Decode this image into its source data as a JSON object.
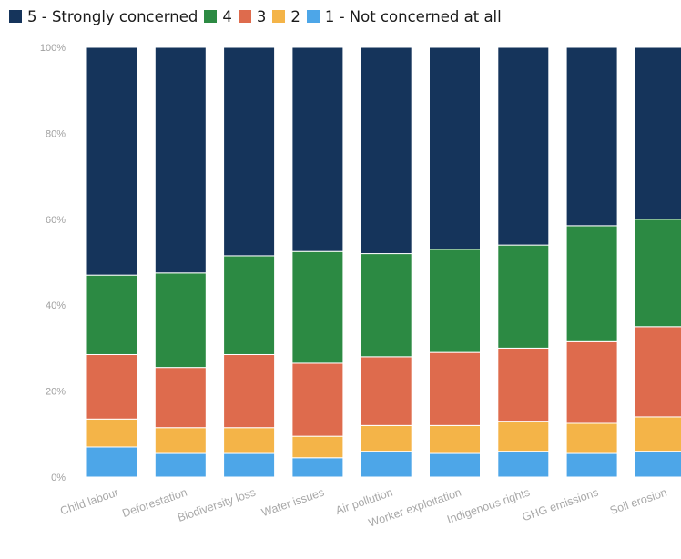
{
  "chart_data": {
    "type": "bar",
    "stacked": true,
    "percent": true,
    "categories": [
      "Child labour",
      "Deforestation",
      "Biodiversity loss",
      "Water issues",
      "Air pollution",
      "Worker exploitation",
      "Indigenous rights",
      "GHG emissions",
      "Soil erosion"
    ],
    "series": [
      {
        "name": "1 - Not concerned at all",
        "color": "#4da6e8",
        "values": [
          7,
          5.5,
          5.5,
          4.5,
          6,
          5.5,
          6,
          5.5,
          6
        ]
      },
      {
        "name": "2",
        "color": "#f4b448",
        "values": [
          6.5,
          6,
          6,
          5,
          6,
          6.5,
          7,
          7,
          8
        ]
      },
      {
        "name": "3",
        "color": "#de6b4d",
        "values": [
          15,
          14,
          17,
          17,
          16,
          17,
          17,
          19,
          21
        ]
      },
      {
        "name": "4",
        "color": "#2c8a43",
        "values": [
          18.5,
          22,
          23,
          26,
          24,
          24,
          24,
          27,
          25
        ]
      },
      {
        "name": "5 - Strongly concerned",
        "color": "#15345b",
        "values": [
          53,
          52.5,
          48.5,
          47.5,
          48,
          47,
          46,
          41.5,
          40
        ]
      }
    ],
    "legend_order": [
      4,
      3,
      2,
      1,
      0
    ],
    "legend_position": "top-left",
    "ylim": [
      0,
      100
    ],
    "yticks": [
      "0%",
      "20%",
      "40%",
      "60%",
      "80%",
      "100%"
    ],
    "grid": false
  }
}
